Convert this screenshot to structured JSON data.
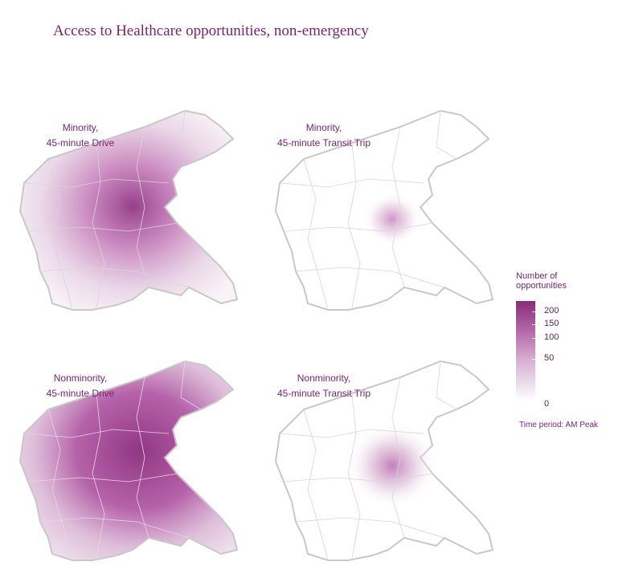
{
  "title": "Access to Healthcare opportunities, non-emergency",
  "panels": [
    {
      "line1": "Minority,",
      "line2": "45-minute Drive",
      "intensity": 0.55
    },
    {
      "line1": "Minority,",
      "line2": "45-minute Transit Trip",
      "intensity": 0.12
    },
    {
      "line1": "Nonminority,",
      "line2": "45-minute Drive",
      "intensity": 0.85
    },
    {
      "line1": "Nonminority,",
      "line2": "45-minute Transit Trip",
      "intensity": 0.18
    }
  ],
  "legend": {
    "title_line1": "Number of",
    "title_line2": "opportunities",
    "values": [
      "200",
      "150",
      "100",
      "50",
      "0"
    ],
    "note": "Time period: AM Peak",
    "colors": {
      "low": "#ffffff",
      "high": "#8a2b7c"
    }
  }
}
